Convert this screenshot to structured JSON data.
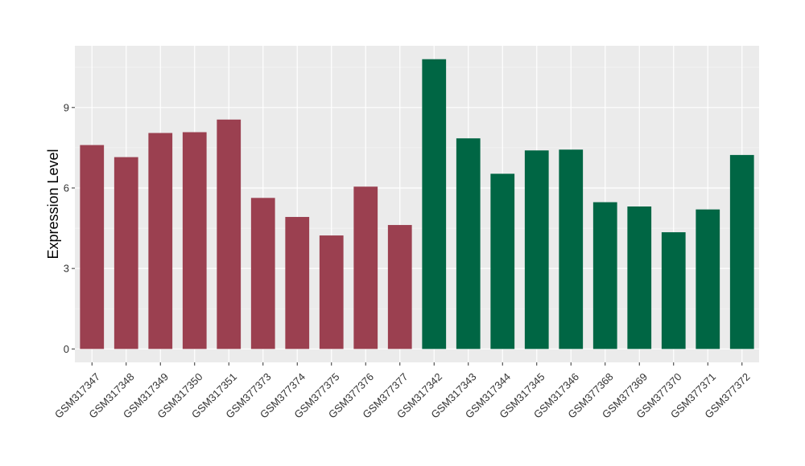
{
  "chart_data": {
    "type": "bar",
    "title": "",
    "xlabel": "",
    "ylabel": "Expression Level",
    "ylim": [
      -0.5,
      11.3
    ],
    "yticks": [
      0,
      3,
      6,
      9
    ],
    "grid": true,
    "categories": [
      "GSM317347",
      "GSM317348",
      "GSM317349",
      "GSM317350",
      "GSM317351",
      "GSM377373",
      "GSM377374",
      "GSM377375",
      "GSM377376",
      "GSM377377",
      "GSM317342",
      "GSM317343",
      "GSM317344",
      "GSM317345",
      "GSM317346",
      "GSM377368",
      "GSM377369",
      "GSM377370",
      "GSM377371",
      "GSM377372"
    ],
    "values": [
      7.6,
      7.15,
      8.05,
      8.08,
      8.55,
      5.63,
      4.92,
      4.23,
      6.05,
      4.62,
      10.8,
      7.85,
      6.53,
      7.4,
      7.43,
      5.47,
      5.31,
      4.35,
      5.2,
      7.23
    ],
    "bar_colors": [
      "#9b4050",
      "#9b4050",
      "#9b4050",
      "#9b4050",
      "#9b4050",
      "#9b4050",
      "#9b4050",
      "#9b4050",
      "#9b4050",
      "#9b4050",
      "#006644",
      "#006644",
      "#006644",
      "#006644",
      "#006644",
      "#006644",
      "#006644",
      "#006644",
      "#006644",
      "#006644"
    ],
    "colors": {
      "panel": "#ebebeb",
      "grid_major": "#ffffff",
      "grid_minor": "#f4f4f4"
    }
  }
}
